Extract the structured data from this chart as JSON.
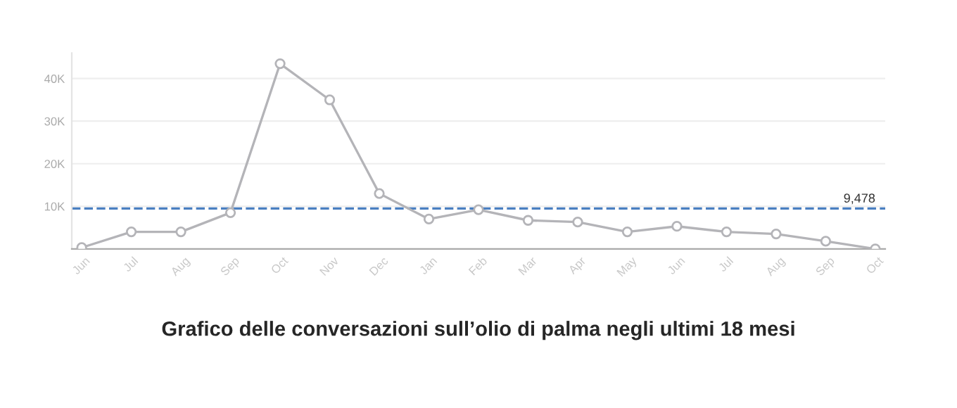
{
  "chart_data": {
    "type": "line",
    "title": "Grafico delle conversazioni sull’olio di palma negli ultimi 18 mesi",
    "categories": [
      "Jun",
      "Jul",
      "Aug",
      "Sep",
      "Oct",
      "Nov",
      "Dec",
      "Jan",
      "Feb",
      "Mar",
      "Apr",
      "May",
      "Jun",
      "Jul",
      "Aug",
      "Sep",
      "Oct"
    ],
    "series": [
      {
        "color": "#b4b4b8",
        "values": [
          300,
          4000,
          4000,
          8500,
          43500,
          35000,
          13000,
          7000,
          9200,
          6700,
          6300,
          4000,
          5300,
          4000,
          3500,
          1800,
          0
        ]
      }
    ],
    "ylim": [
      0,
      46000
    ],
    "yticks": [
      {
        "value": 10000,
        "label": "10K"
      },
      {
        "value": 20000,
        "label": "20K"
      },
      {
        "value": 30000,
        "label": "30K"
      },
      {
        "value": 40000,
        "label": "40K"
      }
    ],
    "ref_lines": [
      {
        "axis": "y",
        "value": 9478,
        "label": "9,478",
        "color": "#4a7fc1",
        "line_style": "dashed"
      }
    ],
    "grid": "y",
    "marker": "circle",
    "line_style": "solid"
  }
}
